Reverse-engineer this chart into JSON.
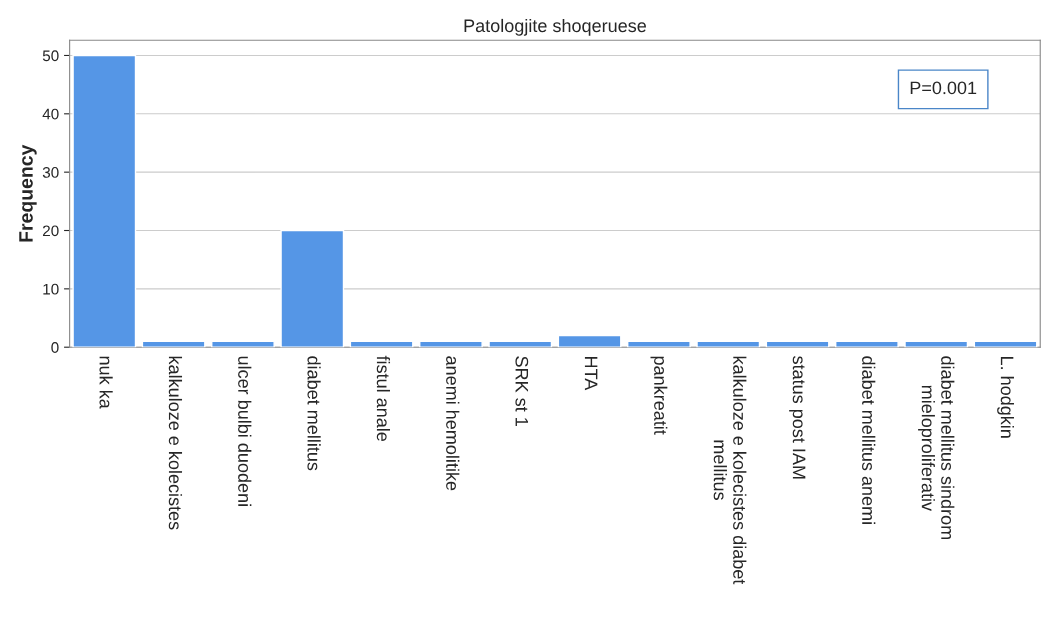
{
  "chart_data": {
    "type": "bar",
    "title": "Patologjite shoqeruese",
    "ylabel": "Frequency",
    "categories": [
      "nuk ka",
      "kalkuloze e kolecistes",
      "ulcer bulbi duodeni",
      "diabet mellitus",
      "fistul anale",
      "anemi hemolitike",
      "SRK st 1",
      "HTA",
      "pankreatit",
      "kalkuloze e kolecistes diabet\nmellitus",
      "status post IAM",
      "diabet mellitus anemi",
      "diabet mellitus sindrom\nmieloproliferativ",
      "L. hodgkin"
    ],
    "values": [
      50,
      1,
      1,
      20,
      1,
      1,
      1,
      2,
      1,
      1,
      1,
      1,
      1,
      1
    ],
    "color": "#5596e6",
    "ylim": [
      0,
      52.6
    ],
    "yticks": [
      0,
      10,
      20,
      30,
      40,
      50
    ],
    "grid": "y",
    "annotations": [
      "P=0.001"
    ]
  }
}
